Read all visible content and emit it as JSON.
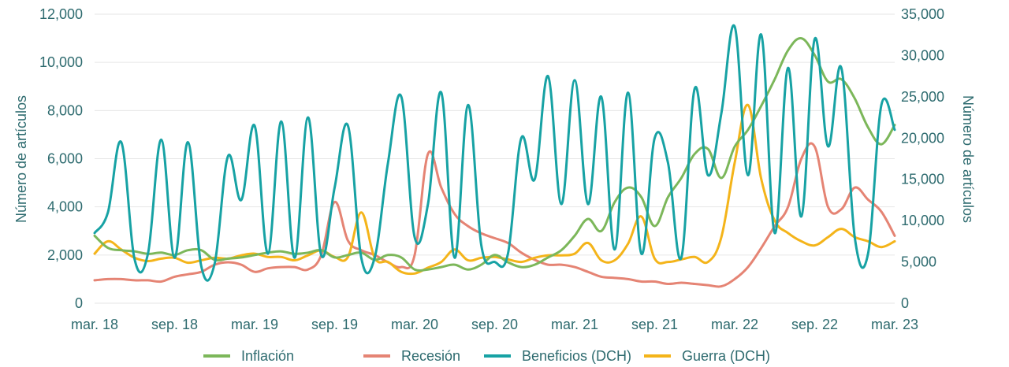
{
  "chart_data": {
    "type": "line",
    "title": "",
    "grid": true,
    "legend_position": "bottom",
    "x": {
      "tick_labels": [
        "mar. 18",
        "sep. 18",
        "mar. 19",
        "sep. 19",
        "mar. 20",
        "sep. 20",
        "mar. 21",
        "sep. 21",
        "mar. 22",
        "sep. 22",
        "mar. 23"
      ],
      "range": [
        "mar. 18",
        "mar. 23"
      ]
    },
    "y_left": {
      "label": "Número de artículos",
      "range": [
        0,
        12000
      ],
      "tick_labels": [
        "0",
        "2,000",
        "4,000",
        "6,000",
        "8,000",
        "10,000",
        "12,000"
      ]
    },
    "y_right": {
      "label": "Número de artículos",
      "range": [
        0,
        35000
      ],
      "tick_labels": [
        "0",
        "5,000",
        "10,000",
        "15,000",
        "20,000",
        "25,000",
        "30,000",
        "35,000"
      ]
    },
    "series": [
      {
        "name": "Inflación",
        "axis": "left",
        "color": "#7cb75a",
        "points": [
          [
            "mar. 18",
            2800
          ],
          [
            "abr. 18",
            2300
          ],
          [
            "may. 18",
            2200
          ],
          [
            "jun. 18",
            2150
          ],
          [
            "jul. 18",
            2050
          ],
          [
            "ago. 18",
            2100
          ],
          [
            "sep. 18",
            2000
          ],
          [
            "oct. 18",
            2200
          ],
          [
            "nov. 18",
            2200
          ],
          [
            "dic. 18",
            1800
          ],
          [
            "ene. 19",
            1850
          ],
          [
            "feb. 19",
            1900
          ],
          [
            "mar. 19",
            2000
          ],
          [
            "abr. 19",
            2100
          ],
          [
            "may. 19",
            2150
          ],
          [
            "jun. 19",
            2050
          ],
          [
            "jul. 19",
            2100
          ],
          [
            "ago. 19",
            2200
          ],
          [
            "sep. 19",
            1900
          ],
          [
            "oct. 19",
            2000
          ],
          [
            "nov. 19",
            2100
          ],
          [
            "dic. 19",
            1800
          ],
          [
            "ene. 20",
            2000
          ],
          [
            "feb. 20",
            1900
          ],
          [
            "mar. 20",
            1400
          ],
          [
            "abr. 20",
            1400
          ],
          [
            "may. 20",
            1500
          ],
          [
            "jun. 20",
            1600
          ],
          [
            "jul. 20",
            1400
          ],
          [
            "ago. 20",
            1600
          ],
          [
            "sep. 20",
            2000
          ],
          [
            "oct. 20",
            1700
          ],
          [
            "nov. 20",
            1500
          ],
          [
            "dic. 20",
            1600
          ],
          [
            "ene. 21",
            1900
          ],
          [
            "feb. 21",
            2200
          ],
          [
            "mar. 21",
            2800
          ],
          [
            "abr. 21",
            3500
          ],
          [
            "may. 21",
            3000
          ],
          [
            "jun. 21",
            4200
          ],
          [
            "jul. 21",
            4800
          ],
          [
            "ago. 21",
            4400
          ],
          [
            "sep. 21",
            3200
          ],
          [
            "oct. 21",
            4400
          ],
          [
            "nov. 21",
            5200
          ],
          [
            "dic. 21",
            6200
          ],
          [
            "ene. 22",
            6400
          ],
          [
            "feb. 22",
            5200
          ],
          [
            "mar. 22",
            6500
          ],
          [
            "abr. 22",
            7200
          ],
          [
            "may. 22",
            8200
          ],
          [
            "jun. 22",
            9300
          ],
          [
            "jul. 22",
            10500
          ],
          [
            "ago. 22",
            11000
          ],
          [
            "sep. 22",
            10300
          ],
          [
            "oct. 22",
            9200
          ],
          [
            "nov. 22",
            9300
          ],
          [
            "dic. 22",
            8500
          ],
          [
            "ene. 23",
            7300
          ],
          [
            "feb. 23",
            6600
          ],
          [
            "mar. 23",
            7400
          ]
        ]
      },
      {
        "name": "Recesión",
        "axis": "left",
        "color": "#e58474",
        "points": [
          [
            "mar. 18",
            950
          ],
          [
            "abr. 18",
            1000
          ],
          [
            "may. 18",
            1000
          ],
          [
            "jun. 18",
            950
          ],
          [
            "jul. 18",
            950
          ],
          [
            "ago. 18",
            900
          ],
          [
            "sep. 18",
            1100
          ],
          [
            "oct. 18",
            1200
          ],
          [
            "nov. 18",
            1300
          ],
          [
            "dic. 18",
            1600
          ],
          [
            "ene. 19",
            1700
          ],
          [
            "feb. 19",
            1600
          ],
          [
            "mar. 19",
            1300
          ],
          [
            "abr. 19",
            1450
          ],
          [
            "may. 19",
            1500
          ],
          [
            "jun. 19",
            1500
          ],
          [
            "jul. 19",
            1400
          ],
          [
            "ago. 19",
            2000
          ],
          [
            "sep. 19",
            4200
          ],
          [
            "oct. 19",
            2600
          ],
          [
            "nov. 19",
            2200
          ],
          [
            "dic. 19",
            2000
          ],
          [
            "ene. 20",
            1700
          ],
          [
            "feb. 20",
            1500
          ],
          [
            "mar. 20",
            2000
          ],
          [
            "abr. 20",
            6200
          ],
          [
            "may. 20",
            4800
          ],
          [
            "jun. 20",
            3700
          ],
          [
            "jul. 20",
            3200
          ],
          [
            "ago. 20",
            2900
          ],
          [
            "sep. 20",
            2700
          ],
          [
            "oct. 20",
            2500
          ],
          [
            "nov. 20",
            2100
          ],
          [
            "dic. 20",
            1800
          ],
          [
            "ene. 21",
            1600
          ],
          [
            "feb. 21",
            1600
          ],
          [
            "mar. 21",
            1500
          ],
          [
            "abr. 21",
            1300
          ],
          [
            "may. 21",
            1100
          ],
          [
            "jun. 21",
            1050
          ],
          [
            "jul. 21",
            1000
          ],
          [
            "ago. 21",
            900
          ],
          [
            "sep. 21",
            900
          ],
          [
            "oct. 21",
            800
          ],
          [
            "nov. 21",
            850
          ],
          [
            "dic. 21",
            800
          ],
          [
            "ene. 22",
            750
          ],
          [
            "feb. 22",
            700
          ],
          [
            "mar. 22",
            1000
          ],
          [
            "abr. 22",
            1500
          ],
          [
            "may. 22",
            2300
          ],
          [
            "jun. 22",
            3200
          ],
          [
            "jul. 22",
            4000
          ],
          [
            "ago. 22",
            6000
          ],
          [
            "sep. 22",
            6500
          ],
          [
            "oct. 22",
            4000
          ],
          [
            "nov. 22",
            3900
          ],
          [
            "dic. 22",
            4800
          ],
          [
            "ene. 23",
            4300
          ],
          [
            "feb. 23",
            3800
          ],
          [
            "mar. 23",
            2800
          ]
        ]
      },
      {
        "name": "Beneficios (DCH)",
        "axis": "right",
        "color": "#17a2a4",
        "points": [
          [
            "mar. 18",
            8500
          ],
          [
            "abr. 18",
            11000
          ],
          [
            "may. 18",
            19500
          ],
          [
            "jun. 18",
            5300
          ],
          [
            "jul. 18",
            6000
          ],
          [
            "ago. 18",
            19800
          ],
          [
            "sep. 18",
            5500
          ],
          [
            "oct. 18",
            19500
          ],
          [
            "nov. 18",
            4500
          ],
          [
            "dic. 18",
            4800
          ],
          [
            "ene. 19",
            17800
          ],
          [
            "feb. 19",
            12500
          ],
          [
            "mar. 19",
            21500
          ],
          [
            "abr. 19",
            6000
          ],
          [
            "may. 19",
            22000
          ],
          [
            "jun. 19",
            5500
          ],
          [
            "jul. 19",
            22500
          ],
          [
            "ago. 19",
            5800
          ],
          [
            "sep. 19",
            14000
          ],
          [
            "oct. 19",
            21500
          ],
          [
            "nov. 19",
            5500
          ],
          [
            "dic. 19",
            5500
          ],
          [
            "ene. 20",
            17000
          ],
          [
            "feb. 20",
            25000
          ],
          [
            "mar. 20",
            8000
          ],
          [
            "abr. 20",
            12000
          ],
          [
            "may. 20",
            25500
          ],
          [
            "jun. 20",
            5500
          ],
          [
            "jul. 20",
            24000
          ],
          [
            "ago. 20",
            7000
          ],
          [
            "sep. 20",
            5000
          ],
          [
            "oct. 20",
            6000
          ],
          [
            "nov. 20",
            20000
          ],
          [
            "dic. 20",
            15000
          ],
          [
            "ene. 21",
            27500
          ],
          [
            "feb. 21",
            12000
          ],
          [
            "mar. 21",
            27000
          ],
          [
            "abr. 21",
            12000
          ],
          [
            "may. 21",
            25000
          ],
          [
            "jun. 21",
            6500
          ],
          [
            "jul. 21",
            25500
          ],
          [
            "ago. 21",
            6000
          ],
          [
            "sep. 21",
            20000
          ],
          [
            "oct. 21",
            17000
          ],
          [
            "nov. 21",
            5500
          ],
          [
            "dic. 21",
            26000
          ],
          [
            "ene. 22",
            15500
          ],
          [
            "feb. 22",
            23000
          ],
          [
            "mar. 22",
            33500
          ],
          [
            "abr. 22",
            15500
          ],
          [
            "may. 22",
            32500
          ],
          [
            "jun. 22",
            8500
          ],
          [
            "jul. 22",
            28500
          ],
          [
            "ago. 22",
            10500
          ],
          [
            "sep. 22",
            32000
          ],
          [
            "oct. 22",
            19000
          ],
          [
            "nov. 22",
            28500
          ],
          [
            "dic. 22",
            8000
          ],
          [
            "ene. 23",
            6000
          ],
          [
            "feb. 23",
            24000
          ],
          [
            "mar. 23",
            21000
          ]
        ]
      },
      {
        "name": "Guerra (DCH)",
        "axis": "right",
        "color": "#f4b41a",
        "points": [
          [
            "mar. 18",
            6000
          ],
          [
            "abr. 18",
            7500
          ],
          [
            "may. 18",
            6500
          ],
          [
            "jun. 18",
            5500
          ],
          [
            "jul. 18",
            5100
          ],
          [
            "ago. 18",
            5400
          ],
          [
            "sep. 18",
            5500
          ],
          [
            "oct. 18",
            4900
          ],
          [
            "nov. 18",
            5200
          ],
          [
            "dic. 18",
            5500
          ],
          [
            "ene. 19",
            5400
          ],
          [
            "feb. 19",
            5800
          ],
          [
            "mar. 19",
            6000
          ],
          [
            "abr. 19",
            5600
          ],
          [
            "may. 19",
            5600
          ],
          [
            "jun. 19",
            5200
          ],
          [
            "jul. 19",
            5800
          ],
          [
            "ago. 19",
            6400
          ],
          [
            "sep. 19",
            5600
          ],
          [
            "oct. 19",
            5600
          ],
          [
            "nov. 19",
            11000
          ],
          [
            "dic. 19",
            5500
          ],
          [
            "ene. 20",
            5000
          ],
          [
            "feb. 20",
            3800
          ],
          [
            "mar. 20",
            3600
          ],
          [
            "abr. 20",
            4300
          ],
          [
            "may. 20",
            5000
          ],
          [
            "jun. 20",
            6500
          ],
          [
            "jul. 20",
            5200
          ],
          [
            "ago. 20",
            5500
          ],
          [
            "sep. 20",
            5600
          ],
          [
            "oct. 20",
            5300
          ],
          [
            "nov. 20",
            5000
          ],
          [
            "dic. 20",
            5500
          ],
          [
            "ene. 21",
            5800
          ],
          [
            "feb. 21",
            5800
          ],
          [
            "mar. 21",
            6000
          ],
          [
            "abr. 21",
            7300
          ],
          [
            "may. 21",
            5200
          ],
          [
            "jun. 21",
            5200
          ],
          [
            "jul. 21",
            7200
          ],
          [
            "ago. 21",
            10500
          ],
          [
            "sep. 21",
            5400
          ],
          [
            "oct. 21",
            5000
          ],
          [
            "nov. 21",
            5300
          ],
          [
            "dic. 21",
            5600
          ],
          [
            "ene. 22",
            5000
          ],
          [
            "feb. 22",
            8000
          ],
          [
            "mar. 22",
            17000
          ],
          [
            "abr. 22",
            24000
          ],
          [
            "may. 22",
            15000
          ],
          [
            "jun. 22",
            10000
          ],
          [
            "jul. 22",
            8500
          ],
          [
            "ago. 22",
            7500
          ],
          [
            "sep. 22",
            7000
          ],
          [
            "oct. 22",
            8000
          ],
          [
            "nov. 22",
            9000
          ],
          [
            "dic. 22",
            8000
          ],
          [
            "ene. 23",
            7500
          ],
          [
            "feb. 23",
            6800
          ],
          [
            "mar. 23",
            7500
          ]
        ]
      }
    ]
  }
}
